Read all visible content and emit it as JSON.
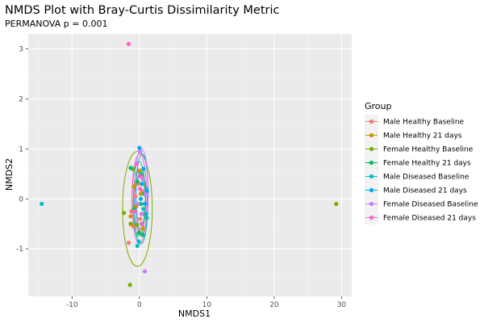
{
  "chart_data": {
    "type": "scatter",
    "title": "NMDS Plot with Bray-Curtis Dissimilarity Metric",
    "subtitle": "PERMANOVA p = 0.001",
    "xlabel": "NMDS1",
    "ylabel": "NMDS2",
    "xlim": [
      -16.5,
      31.5
    ],
    "ylim": [
      -1.95,
      3.3
    ],
    "x_ticks": [
      -10,
      0,
      10,
      20,
      30
    ],
    "y_ticks": [
      -1,
      0,
      1,
      2,
      3
    ],
    "grid": true,
    "legend_title": "Group",
    "legend_position": "right",
    "series": [
      {
        "name": "Male Healthy Baseline",
        "color": "#F8766D",
        "points": [
          [
            -1.6,
            -0.88
          ],
          [
            -1.2,
            -0.25
          ],
          [
            -0.6,
            0.05
          ],
          [
            -0.2,
            0.3
          ],
          [
            0.1,
            -0.4
          ],
          [
            0.4,
            0.15
          ],
          [
            -0.9,
            -0.55
          ],
          [
            0.3,
            0.45
          ]
        ],
        "ellipse": {
          "cx": 0.0,
          "cy": -0.1,
          "rx": 0.9,
          "ry": 0.55
        }
      },
      {
        "name": "Male Healthy 21 days",
        "color": "#CD9600",
        "points": [
          [
            -1.3,
            -0.35
          ],
          [
            -0.5,
            -0.15
          ],
          [
            0.2,
            0.1
          ],
          [
            0.6,
            -0.3
          ],
          [
            -0.8,
            0.25
          ],
          [
            0.0,
            0.55
          ],
          [
            0.5,
            -0.6
          ]
        ],
        "ellipse": {
          "cx": 0.0,
          "cy": 0.0,
          "rx": 0.9,
          "ry": 0.6
        }
      },
      {
        "name": "Female Healthy Baseline",
        "color": "#7CAE00",
        "points": [
          [
            29.2,
            -0.1
          ],
          [
            -1.4,
            -1.72
          ],
          [
            -2.3,
            -0.28
          ],
          [
            -1.0,
            0.6
          ],
          [
            -0.4,
            -0.52
          ],
          [
            0.3,
            0.3
          ],
          [
            -1.3,
            -0.5
          ]
        ],
        "ellipse": {
          "cx": -0.3,
          "cy": -0.2,
          "rx": 2.2,
          "ry": 1.15
        }
      },
      {
        "name": "Female Healthy 21 days",
        "color": "#00BE67",
        "points": [
          [
            -1.3,
            0.62
          ],
          [
            -0.8,
            -0.2
          ],
          [
            -0.3,
            0.35
          ],
          [
            0.2,
            -0.1
          ],
          [
            0.5,
            -0.72
          ],
          [
            -0.1,
            -0.68
          ],
          [
            0.7,
            0.1
          ]
        ],
        "ellipse": {
          "cx": -0.1,
          "cy": 0.0,
          "rx": 1.0,
          "ry": 0.75
        }
      },
      {
        "name": "Male Diseased Baseline",
        "color": "#00BFC4",
        "points": [
          [
            -14.5,
            -0.1
          ],
          [
            -0.1,
            -0.85
          ],
          [
            0.3,
            -0.5
          ],
          [
            0.6,
            -0.2
          ],
          [
            1.0,
            0.2
          ],
          [
            0.2,
            0.5
          ],
          [
            -0.3,
            -0.94
          ],
          [
            1.1,
            -0.38
          ]
        ],
        "ellipse": {
          "cx": 0.2,
          "cy": -0.2,
          "rx": 1.0,
          "ry": 0.7
        }
      },
      {
        "name": "Male Diseased 21 days",
        "color": "#00A9FF",
        "points": [
          [
            0.0,
            1.02
          ],
          [
            0.4,
            0.3
          ],
          [
            0.8,
            -0.1
          ],
          [
            1.0,
            -0.3
          ],
          [
            0.6,
            0.6
          ],
          [
            0.2,
            0.0
          ],
          [
            1.1,
            0.15
          ]
        ],
        "ellipse": {
          "cx": 0.4,
          "cy": 0.1,
          "rx": 0.9,
          "ry": 0.8
        }
      },
      {
        "name": "Female Diseased Baseline",
        "color": "#C77CFF",
        "points": [
          [
            0.8,
            -1.45
          ],
          [
            0.1,
            0.95
          ],
          [
            -0.2,
            -0.1
          ],
          [
            0.5,
            0.4
          ],
          [
            0.9,
            0.1
          ],
          [
            0.3,
            -0.3
          ]
        ],
        "ellipse": {
          "cx": 0.3,
          "cy": 0.15,
          "rx": 1.0,
          "ry": 0.85
        }
      },
      {
        "name": "Female Diseased 21 days",
        "color": "#FF61CC",
        "points": [
          [
            -1.6,
            3.1
          ],
          [
            -0.4,
            0.7
          ],
          [
            0.1,
            0.2
          ],
          [
            -0.6,
            -0.25
          ],
          [
            0.4,
            -0.5
          ],
          [
            0.0,
            0.45
          ]
        ],
        "ellipse": {
          "cx": 0.0,
          "cy": 0.0,
          "rx": 1.1,
          "ry": 0.9
        }
      }
    ]
  }
}
